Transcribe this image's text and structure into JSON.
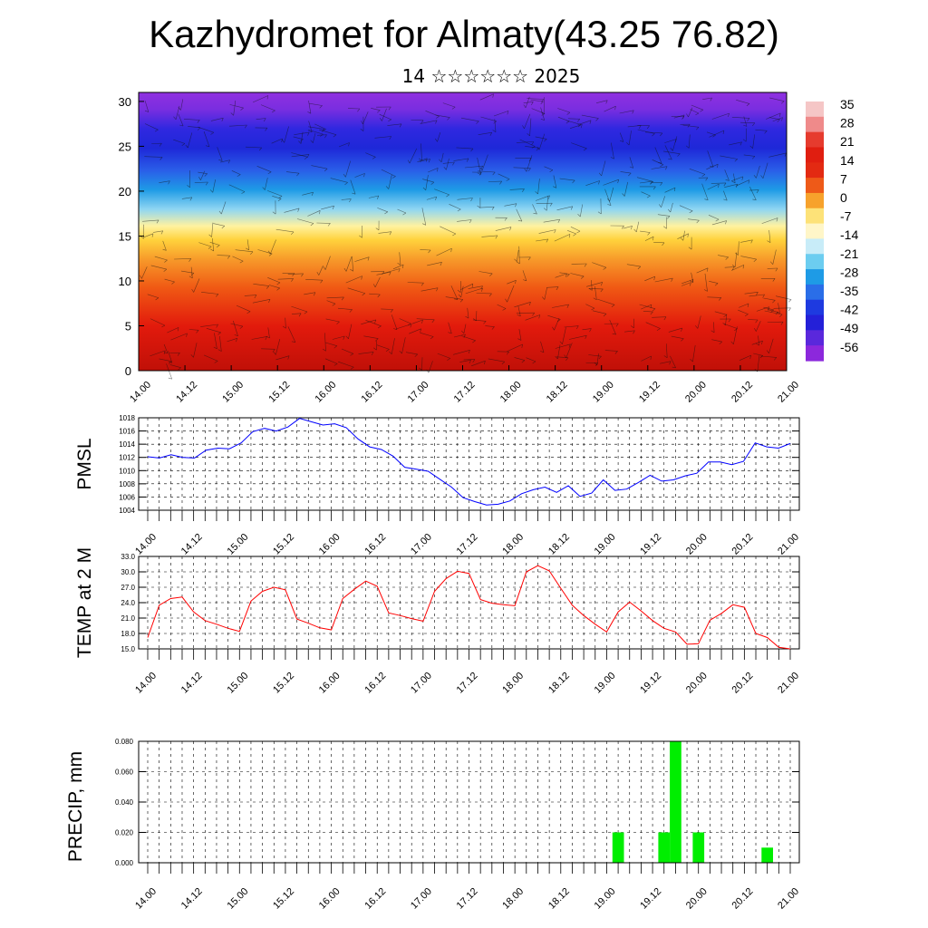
{
  "title": "Kazhydromet for Almaty(43.25 76.82)",
  "subtitle": "14 ☆☆☆☆☆☆ 2025",
  "chart_data": [
    {
      "type": "heatmap",
      "name": "upper-air-section",
      "ylim": [
        0,
        31
      ],
      "yticks": [
        "0",
        "5",
        "10",
        "15",
        "20",
        "25",
        "30"
      ],
      "xticks": [
        "14.00",
        "14.12",
        "15.00",
        "15.12",
        "16.00",
        "16.12",
        "17.00",
        "17.12",
        "18.00",
        "18.12",
        "19.00",
        "19.12",
        "20.00",
        "20.12",
        "21.00"
      ],
      "colorbar_labels": [
        "35",
        "28",
        "21",
        "14",
        "7",
        "0",
        "-7",
        "-14",
        "-21",
        "-28",
        "-35",
        "-42",
        "-49",
        "-56"
      ],
      "colors": {
        "warm": "#e0140a",
        "mid": "#ffd23c",
        "cool": "#1e9be6",
        "cold": "#1e28e6",
        "top": "#8c28dc"
      },
      "overlays": [
        "wind barbs",
        "streamlines"
      ]
    },
    {
      "type": "line",
      "ylabel": "PMSL",
      "ylim": [
        1004,
        1018
      ],
      "yticks": [
        "1004",
        "1006",
        "1008",
        "1010",
        "1012",
        "1014",
        "1016",
        "1018"
      ],
      "xticks": [
        "14.00",
        "14.12",
        "15.00",
        "15.12",
        "16.00",
        "16.12",
        "17.00",
        "17.12",
        "18.00",
        "18.12",
        "19.00",
        "19.12",
        "20.00",
        "20.12",
        "21.00"
      ],
      "color": "#0000ff",
      "values": [
        1012.1,
        1011.9,
        1012.4,
        1012.0,
        1011.9,
        1013.1,
        1013.4,
        1013.3,
        1014.2,
        1015.9,
        1016.4,
        1016.0,
        1016.6,
        1017.9,
        1017.4,
        1016.9,
        1017.1,
        1016.5,
        1014.8,
        1013.6,
        1013.2,
        1012.2,
        1010.5,
        1010.2,
        1009.9,
        1008.7,
        1007.5,
        1005.9,
        1005.3,
        1004.8,
        1004.9,
        1005.4,
        1006.5,
        1007.1,
        1007.5,
        1006.7,
        1007.7,
        1006.1,
        1006.6,
        1008.6,
        1007.0,
        1007.2,
        1008.2,
        1009.3,
        1008.4,
        1008.6,
        1009.2,
        1009.6,
        1011.3,
        1011.3,
        1010.9,
        1011.4,
        1014.2,
        1013.6,
        1013.4,
        1014.1
      ]
    },
    {
      "type": "line",
      "ylabel": "TEMP at 2 M",
      "ylim": [
        15.0,
        33.0
      ],
      "yticks": [
        "15.0",
        "18.0",
        "21.0",
        "24.0",
        "27.0",
        "30.0",
        "33.0"
      ],
      "xticks": [
        "14.00",
        "14.12",
        "15.00",
        "15.12",
        "16.00",
        "16.12",
        "17.00",
        "17.12",
        "18.00",
        "18.12",
        "19.00",
        "19.12",
        "20.00",
        "20.12",
        "21.00"
      ],
      "color": "#ff0000",
      "values": [
        17.2,
        23.5,
        24.8,
        25.1,
        22.2,
        20.5,
        19.8,
        19.0,
        18.4,
        24.3,
        26.2,
        27.0,
        26.5,
        20.8,
        20.0,
        19.1,
        18.7,
        24.8,
        26.6,
        28.2,
        27.2,
        22.0,
        21.5,
        20.9,
        20.4,
        26.2,
        28.7,
        30.1,
        29.7,
        24.6,
        23.9,
        23.6,
        23.4,
        30.0,
        31.2,
        30.2,
        26.8,
        23.5,
        21.5,
        19.8,
        18.3,
        22.2,
        24.1,
        22.4,
        20.5,
        19.0,
        18.3,
        15.9,
        16.0,
        20.6,
        21.9,
        23.6,
        23.1,
        18.0,
        17.2,
        15.3,
        15.0
      ]
    },
    {
      "type": "bar",
      "ylabel": "PRECIP, mm",
      "ylim": [
        0.0,
        0.08
      ],
      "yticks": [
        "0.000",
        "0.020",
        "0.040",
        "0.060",
        "0.080"
      ],
      "xticks": [
        "14.00",
        "14.12",
        "15.00",
        "15.12",
        "16.00",
        "16.12",
        "17.00",
        "17.12",
        "18.00",
        "18.12",
        "19.00",
        "19.12",
        "20.00",
        "20.12",
        "21.00"
      ],
      "color": "#00ee00",
      "bars": [
        {
          "x": 41,
          "value": 0.02
        },
        {
          "x": 45,
          "value": 0.02
        },
        {
          "x": 46,
          "value": 0.08
        },
        {
          "x": 48,
          "value": 0.02
        },
        {
          "x": 54,
          "value": 0.01
        }
      ]
    }
  ]
}
